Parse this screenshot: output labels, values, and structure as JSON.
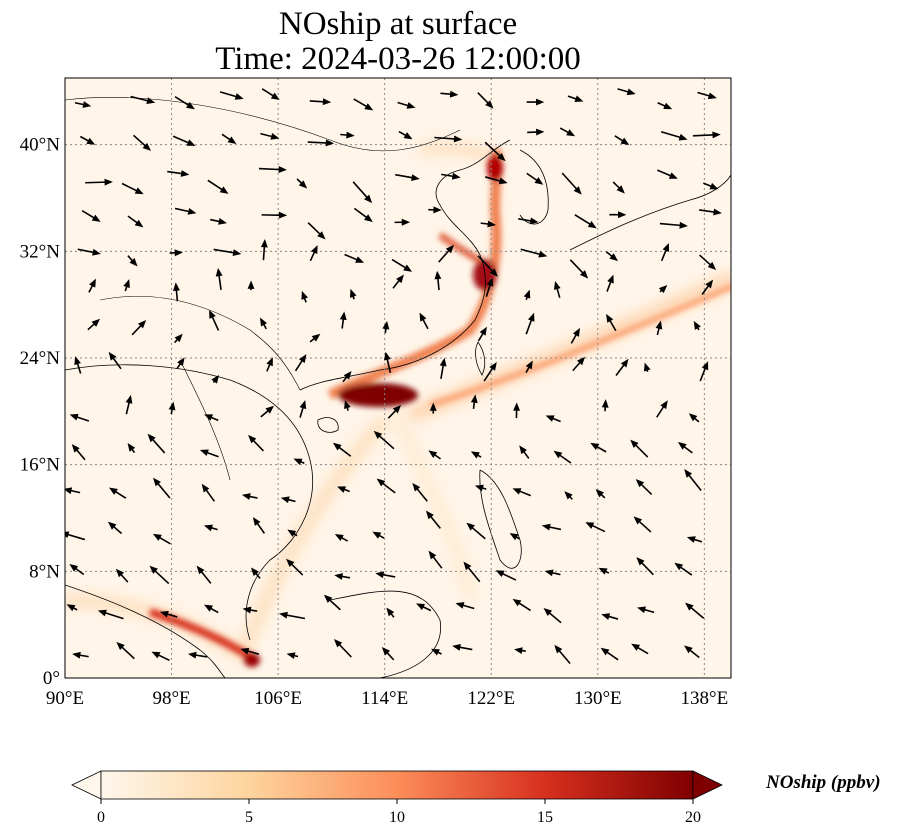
{
  "title": {
    "line1": "NOship at surface",
    "line2": "Time: 2024-03-26 12:00:00"
  },
  "map": {
    "projection": "PlateCarree",
    "lon_range": [
      90,
      140
    ],
    "lat_range": [
      0,
      45
    ],
    "gridlines": true,
    "gridline_style": "dotted",
    "coastlines": true,
    "country_borders": true,
    "x_ticks": [
      {
        "value": 90,
        "label": "90°E"
      },
      {
        "value": 98,
        "label": "98°E"
      },
      {
        "value": 106,
        "label": "106°E"
      },
      {
        "value": 114,
        "label": "114°E"
      },
      {
        "value": 122,
        "label": "122°E"
      },
      {
        "value": 130,
        "label": "130°E"
      },
      {
        "value": 138,
        "label": "138°E"
      }
    ],
    "y_ticks": [
      {
        "value": 0,
        "label": "0°"
      },
      {
        "value": 8,
        "label": "8°N"
      },
      {
        "value": 16,
        "label": "16°N"
      },
      {
        "value": 24,
        "label": "24°N"
      },
      {
        "value": 32,
        "label": "32°N"
      },
      {
        "value": 40,
        "label": "40°N"
      }
    ],
    "field": "NOship surface concentration (shaded)",
    "vectors": "wind arrows",
    "colors": {
      "background": "#fff5e8",
      "land_line": "#000000",
      "grid": "#888888"
    }
  },
  "colorbar": {
    "label": "NOship (ppbv)",
    "min": 0,
    "max": 20,
    "extend": "both",
    "ticks": [
      {
        "value": 0,
        "label": "0"
      },
      {
        "value": 5,
        "label": "5"
      },
      {
        "value": 10,
        "label": "10"
      },
      {
        "value": 15,
        "label": "15"
      },
      {
        "value": 20,
        "label": "20"
      }
    ],
    "colormap": "OrRd",
    "stops": [
      "#fff7ec",
      "#fdd49e",
      "#fc8d59",
      "#d7301f",
      "#7f0000"
    ]
  }
}
